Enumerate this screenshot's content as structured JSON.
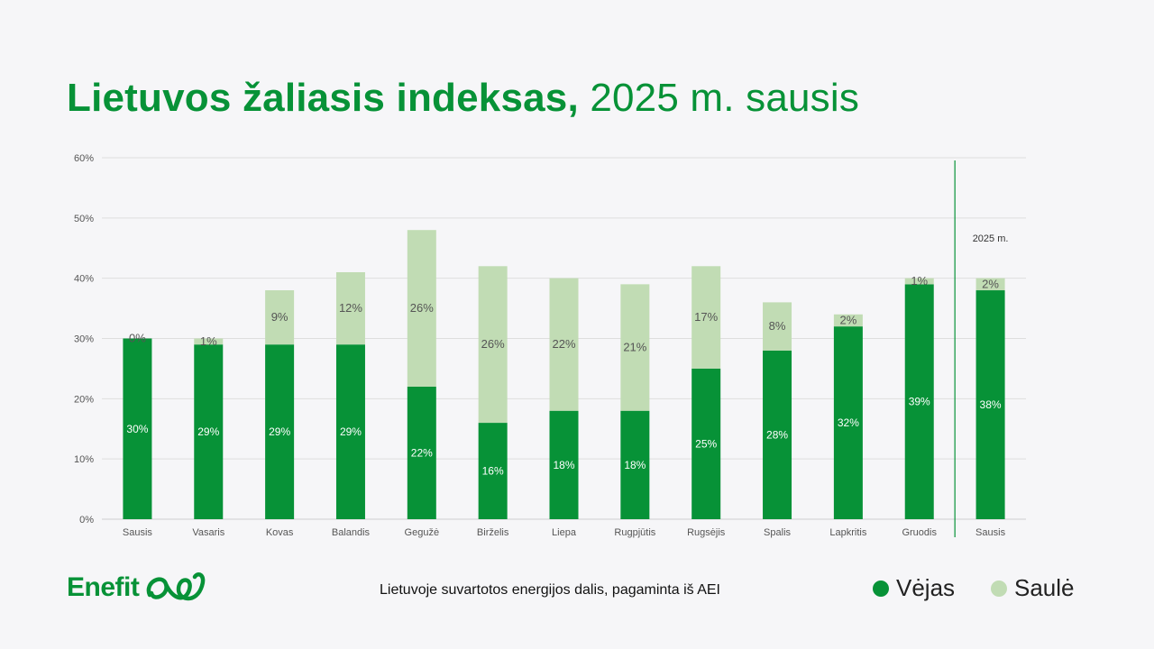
{
  "title": {
    "bold": "Lietuvos žaliasis indeksas,",
    "rest": " 2025 m. sausis"
  },
  "caption": "Lietuvoje suvartotos energijos dalis, pagaminta iš AEI",
  "logo": {
    "text": "Enefit",
    "icon": "enefit-swirl-icon"
  },
  "legend": [
    {
      "label": "Vėjas",
      "color": "#079237"
    },
    {
      "label": "Saulė",
      "color": "#c1dcb4"
    }
  ],
  "chart_data": {
    "type": "bar",
    "stacked": true,
    "categories": [
      "Sausis",
      "Vasaris",
      "Kovas",
      "Balandis",
      "Gegužė",
      "Birželis",
      "Liepa",
      "Rugpjūtis",
      "Rugsėjis",
      "Spalis",
      "Lapkritis",
      "Gruodis",
      "Sausis"
    ],
    "series": [
      {
        "name": "Vėjas",
        "color": "#079237",
        "values": [
          30,
          29,
          29,
          29,
          22,
          16,
          18,
          18,
          25,
          28,
          32,
          39,
          38
        ]
      },
      {
        "name": "Saulė",
        "color": "#c1dcb4",
        "values": [
          0,
          1,
          9,
          12,
          26,
          26,
          22,
          21,
          17,
          8,
          2,
          1,
          2
        ]
      }
    ],
    "ylim": [
      0,
      60
    ],
    "yticks": [
      "0%",
      "10%",
      "20%",
      "30%",
      "40%",
      "50%",
      "60%"
    ],
    "separator_label": "2025 m.",
    "grid": true
  }
}
